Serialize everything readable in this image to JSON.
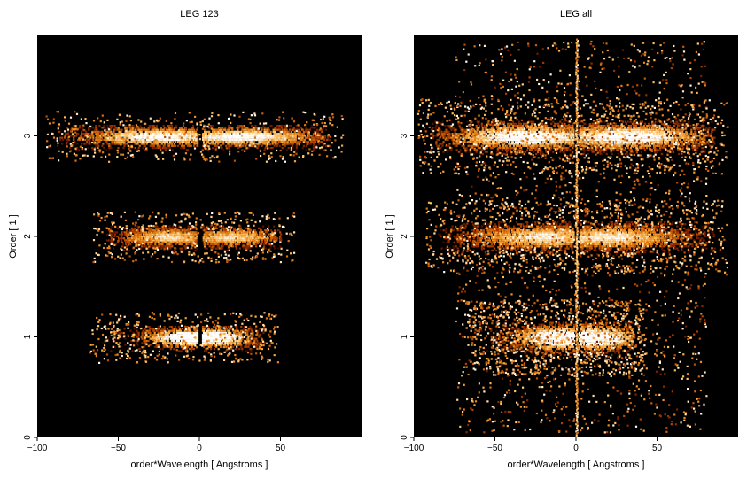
{
  "chart_data": [
    {
      "type": "heatmap",
      "title": "LEG 123",
      "xlabel": "order*Wavelength [ Angstroms ]",
      "ylabel": "Order [ 1 ]",
      "xlim": [
        -100,
        100
      ],
      "ylim": [
        0,
        4
      ],
      "x_ticks": [
        -100,
        -50,
        0,
        50
      ],
      "y_ticks": [
        0,
        1,
        2,
        3
      ],
      "background": "#000000",
      "colormap": [
        "#000000",
        "#5a1400",
        "#a83a00",
        "#e07a10",
        "#ffc060",
        "#ffffff"
      ],
      "bands": [
        {
          "order": 1,
          "x_min": -60,
          "x_max": 40,
          "gap_x": 0,
          "peak_x": [
            -5,
            5
          ],
          "intensity": 0.95
        },
        {
          "order": 2,
          "x_min": -58,
          "x_max": 50,
          "gap_x": 0,
          "peak_x": [
            -20,
            20
          ],
          "intensity": 0.6
        },
        {
          "order": 3,
          "x_min": -88,
          "x_max": 80,
          "gap_x": 0,
          "peak_x": [
            -25,
            25
          ],
          "intensity": 0.75
        }
      ]
    },
    {
      "type": "heatmap",
      "title": "LEG all",
      "xlabel": "order*Wavelength [ Angstroms ]",
      "ylabel": "Order [ 1 ]",
      "xlim": [
        -100,
        100
      ],
      "ylim": [
        0,
        4
      ],
      "x_ticks": [
        -100,
        -50,
        0,
        50
      ],
      "y_ticks": [
        0,
        1,
        2,
        3
      ],
      "background": "#000000",
      "colormap": [
        "#000000",
        "#5a1400",
        "#a83a00",
        "#e07a10",
        "#ffc060",
        "#ffffff"
      ],
      "bands": [
        {
          "order": 1,
          "x_min": -60,
          "x_max": 35,
          "gap_x": 0,
          "peak_x": [
            -10,
            10
          ],
          "intensity": 0.95
        },
        {
          "order": 2,
          "x_min": -85,
          "x_max": 85,
          "gap_x": 0,
          "peak_x": [
            -20,
            20
          ],
          "intensity": 0.65
        },
        {
          "order": 3,
          "x_min": -90,
          "x_max": 85,
          "gap_x": 0,
          "peak_x": [
            -30,
            30
          ],
          "intensity": 0.8
        }
      ]
    }
  ]
}
